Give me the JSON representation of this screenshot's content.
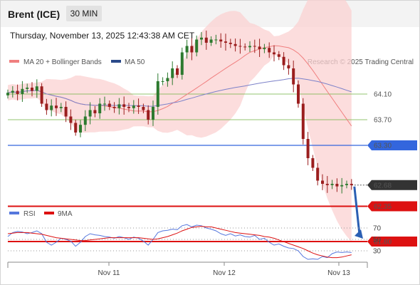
{
  "header": {
    "instrument": "Brent (ICE)",
    "timeframe": "30 MIN"
  },
  "timestamp": "Thursday, November 13, 2025 12:43:38 AM CET",
  "legend": {
    "ma20": "MA 20 + Bollinger Bands",
    "ma50": "MA 50",
    "rsi": "RSI",
    "rsi_ma": "9MA"
  },
  "credit": "Research © 2025 Trading Central",
  "colors": {
    "up": "#2d7a2f",
    "down": "#9b1e1e",
    "ma20": "#f07f7f",
    "band": "#fbd2d2",
    "ma50": "#7d82c9",
    "level_blue": "#3366dd",
    "level_red": "#dd1111",
    "level_green": "#6fb23f",
    "rsi": "#5577dd",
    "rsi_ma": "#dd1111",
    "arrow": "#2b5fb3"
  },
  "chart_data": [
    {
      "type": "candlestick",
      "title": "Brent (ICE) 30 MIN",
      "x_ticks": [
        "Nov 11",
        "Nov 12",
        "Nov 13"
      ],
      "ylim": [
        61.2,
        65.1
      ],
      "levels": [
        {
          "label": "64.10",
          "value": 64.1,
          "kind": "resistance",
          "color": "#6fb23f"
        },
        {
          "label": "63.70",
          "value": 63.7,
          "kind": "resistance",
          "color": "#6fb23f"
        },
        {
          "label": "63.30",
          "value": 63.3,
          "kind": "pivot",
          "color": "#3366dd"
        },
        {
          "label": "62.68",
          "value": 62.68,
          "kind": "last_price",
          "color": "#333333"
        },
        {
          "label": "62.35",
          "value": 62.35,
          "kind": "support",
          "color": "#dd1111"
        },
        {
          "label": "61.80",
          "value": 61.8,
          "kind": "support",
          "color": "#dd1111"
        }
      ],
      "forecast_arrow": {
        "from": 62.68,
        "to": 61.8
      },
      "series": [
        {
          "name": "MA 20 + Bollinger Bands",
          "kind": "price_close",
          "values": [
            64.12,
            64.15,
            64.1,
            64.18,
            64.2,
            64.15,
            64.22,
            63.95,
            63.85,
            63.92,
            63.88,
            63.9,
            63.75,
            63.65,
            63.5,
            63.62,
            63.75,
            63.85,
            63.8,
            63.95,
            63.95,
            63.9,
            63.88,
            63.94,
            63.9,
            63.88,
            63.92,
            63.9,
            63.85,
            63.7,
            63.9,
            64.3,
            64.3,
            64.35,
            64.5,
            64.4,
            64.75,
            64.85,
            64.75,
            64.95,
            64.98,
            64.9,
            64.95,
            64.95,
            64.92,
            64.9,
            64.88,
            64.85,
            64.84,
            64.83,
            64.85,
            64.84,
            64.8,
            64.82,
            64.75,
            64.72,
            64.68,
            64.55,
            64.5,
            64.25,
            63.95,
            63.4,
            63.1,
            62.95,
            62.75,
            62.7,
            62.68,
            62.7,
            62.66,
            62.68,
            62.7,
            62.68
          ]
        },
        {
          "name": "MA 50"
        }
      ]
    },
    {
      "type": "line",
      "title": "RSI",
      "ylim": [
        20,
        80
      ],
      "y_ticks": [
        70,
        50,
        30
      ],
      "series": [
        {
          "name": "RSI",
          "values": [
            55,
            62,
            64,
            63,
            60,
            62,
            65,
            60,
            45,
            40,
            45,
            52,
            50,
            47,
            38,
            45,
            55,
            60,
            58,
            57,
            55,
            54,
            52,
            55,
            53,
            50,
            54,
            52,
            47,
            40,
            50,
            62,
            65,
            66,
            68,
            67,
            74,
            76,
            72,
            75,
            74,
            70,
            68,
            65,
            60,
            57,
            60,
            56,
            58,
            55,
            54,
            57,
            50,
            52,
            45,
            40,
            42,
            38,
            35,
            34,
            30,
            20,
            15,
            16,
            15,
            20,
            18,
            25,
            28,
            27,
            28,
            27
          ]
        },
        {
          "name": "9MA",
          "values": [
            60,
            61,
            62,
            62,
            62,
            61,
            60,
            59,
            57,
            55,
            53,
            52,
            51,
            50,
            49,
            48,
            48,
            49,
            50,
            51,
            52,
            53,
            53,
            53,
            53,
            53,
            53,
            53,
            52,
            51,
            50,
            51,
            53,
            55,
            58,
            61,
            65,
            68,
            71,
            72,
            73,
            72,
            72,
            70,
            68,
            66,
            64,
            62,
            61,
            60,
            59,
            58,
            57,
            55,
            54,
            52,
            49,
            46,
            43,
            40,
            37,
            34,
            30,
            26,
            23,
            21,
            19,
            18,
            18,
            19,
            21,
            23
          ]
        }
      ]
    }
  ]
}
